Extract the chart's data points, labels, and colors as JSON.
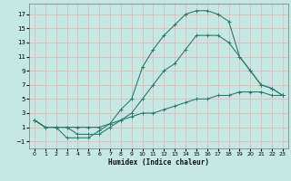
{
  "xlabel": "Humidex (Indice chaleur)",
  "bg_color": "#c5e8e5",
  "grid_color": "#e8b8b8",
  "line_color": "#2e7b6e",
  "xlim": [
    -0.5,
    23.5
  ],
  "ylim": [
    -2,
    18.5
  ],
  "xticks": [
    0,
    1,
    2,
    3,
    4,
    5,
    6,
    7,
    8,
    9,
    10,
    11,
    12,
    13,
    14,
    15,
    16,
    17,
    18,
    19,
    20,
    21,
    22,
    23
  ],
  "yticks": [
    -1,
    1,
    3,
    5,
    7,
    9,
    11,
    13,
    15,
    17
  ],
  "line1_x": [
    0,
    1,
    2,
    3,
    4,
    5,
    6,
    7,
    8,
    9,
    10,
    11,
    12,
    13,
    14,
    15,
    16,
    17,
    18,
    19,
    20,
    21,
    22,
    23
  ],
  "line1_y": [
    2,
    1,
    1,
    1,
    1,
    1,
    1,
    1.5,
    2,
    2.5,
    3,
    3,
    3.5,
    4,
    4.5,
    5,
    5,
    5.5,
    5.5,
    6,
    6,
    6,
    5.5,
    5.5
  ],
  "line2_x": [
    0,
    1,
    2,
    3,
    4,
    5,
    6,
    7,
    8,
    9,
    10,
    11,
    12,
    13,
    14,
    15,
    16,
    17,
    18,
    19,
    20,
    21,
    22,
    23
  ],
  "line2_y": [
    2,
    1,
    1,
    1,
    0,
    0,
    0,
    1,
    2,
    3,
    5,
    7,
    9,
    10,
    12,
    14,
    14,
    14,
    13,
    11,
    9,
    7,
    6.5,
    5.5
  ],
  "line3_x": [
    0,
    1,
    2,
    3,
    4,
    5,
    6,
    7,
    8,
    9,
    10,
    11,
    12,
    13,
    14,
    15,
    16,
    17,
    18,
    19,
    20,
    21,
    22,
    23
  ],
  "line3_y": [
    2,
    1,
    1,
    -0.5,
    -0.5,
    -0.5,
    0.5,
    1.5,
    3.5,
    5,
    9.5,
    12,
    14,
    15.5,
    17,
    17.5,
    17.5,
    17,
    16,
    11,
    9,
    7,
    6.5,
    5.5
  ]
}
